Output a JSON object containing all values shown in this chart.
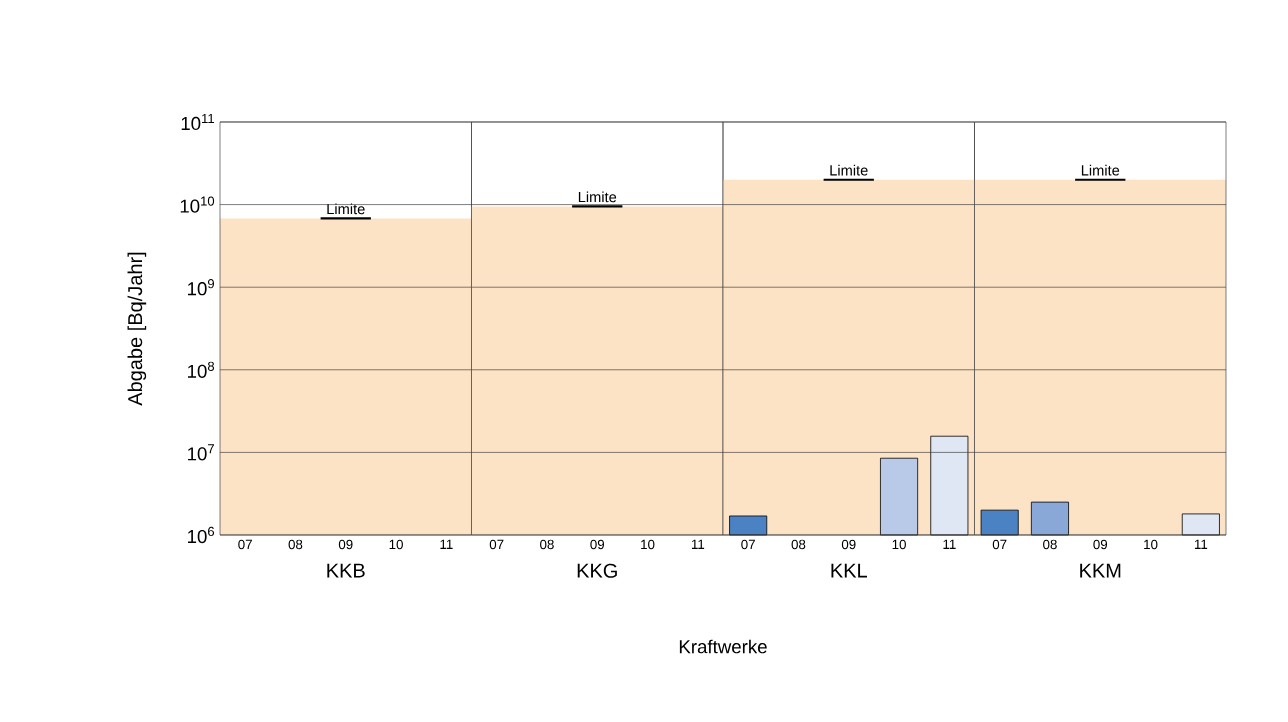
{
  "chart_data": [
    {
      "type": "bar",
      "xlabel": "KKB",
      "ylabel": "Abgabe [Bq/Jahr]",
      "categories": [
        "07",
        "08",
        "09",
        "10",
        "11"
      ],
      "values": [
        null,
        null,
        null,
        null,
        null
      ],
      "log": "y",
      "grid": "y",
      "ylim": [
        1000000,
        100000000000
      ],
      "yticks": [
        {
          "value": 1000000,
          "label": "10$^{6}$"
        },
        {
          "value": 10000000,
          "label": "10$^{7}$"
        },
        {
          "value": 100000000,
          "label": "10$^{8}$"
        },
        {
          "value": 1000000000,
          "label": "10$^{9}$"
        },
        {
          "value": 10000000000,
          "label": "10$^{10}$"
        },
        {
          "value": 100000000000,
          "label": "10$^{11}$"
        }
      ],
      "ref_lines": [
        {
          "axis": "y",
          "value": 6800000000,
          "label": "Limite"
        }
      ],
      "bands": [
        {
          "axis": "y",
          "from": 1000000,
          "to": 6800000000,
          "color": "#fde3c6"
        }
      ],
      "annotations": [
        "Kraftwerke"
      ]
    },
    {
      "type": "bar",
      "xlabel": "KKG",
      "categories": [
        "07",
        "08",
        "09",
        "10",
        "11"
      ],
      "values": [
        null,
        null,
        null,
        null,
        null
      ],
      "log": "y",
      "grid": "y",
      "ylim": [
        1000000,
        100000000000
      ],
      "tick_labels": "x",
      "ref_lines": [
        {
          "axis": "y",
          "value": 9500000000,
          "label": "Limite"
        }
      ],
      "bands": [
        {
          "axis": "y",
          "from": 1000000,
          "to": 9500000000,
          "color": "#fde3c6"
        }
      ]
    },
    {
      "type": "bar",
      "xlabel": "KKL",
      "categories": [
        "07",
        "08",
        "09",
        "10",
        "11"
      ],
      "values": [
        1700000,
        null,
        null,
        8500000,
        15700000
      ],
      "colors": [
        "#4a82c3",
        "#89a8d8",
        "#a9bfe3",
        "#b9cae8",
        "#dfe6f4"
      ],
      "log": "y",
      "grid": "y",
      "ylim": [
        1000000,
        100000000000
      ],
      "tick_labels": "x",
      "ref_lines": [
        {
          "axis": "y",
          "value": 20000000000,
          "label": "Limite"
        }
      ],
      "bands": [
        {
          "axis": "y",
          "from": 1000000,
          "to": 20000000000,
          "color": "#fde3c6"
        }
      ]
    },
    {
      "type": "bar",
      "xlabel": "KKM",
      "categories": [
        "07",
        "08",
        "09",
        "10",
        "11"
      ],
      "values": [
        2000000,
        2500000,
        null,
        null,
        1800000
      ],
      "colors": [
        "#4a82c3",
        "#89a8d8",
        "#a9bfe3",
        "#b9cae8",
        "#dfe6f4"
      ],
      "log": "y",
      "grid": "y",
      "ylim": [
        1000000,
        100000000000
      ],
      "tick_labels": "x",
      "ref_lines": [
        {
          "axis": "y",
          "value": 20000000000,
          "label": "Limite"
        }
      ],
      "bands": [
        {
          "axis": "y",
          "from": 1000000,
          "to": 20000000000,
          "color": "#fde3c6"
        }
      ]
    }
  ]
}
